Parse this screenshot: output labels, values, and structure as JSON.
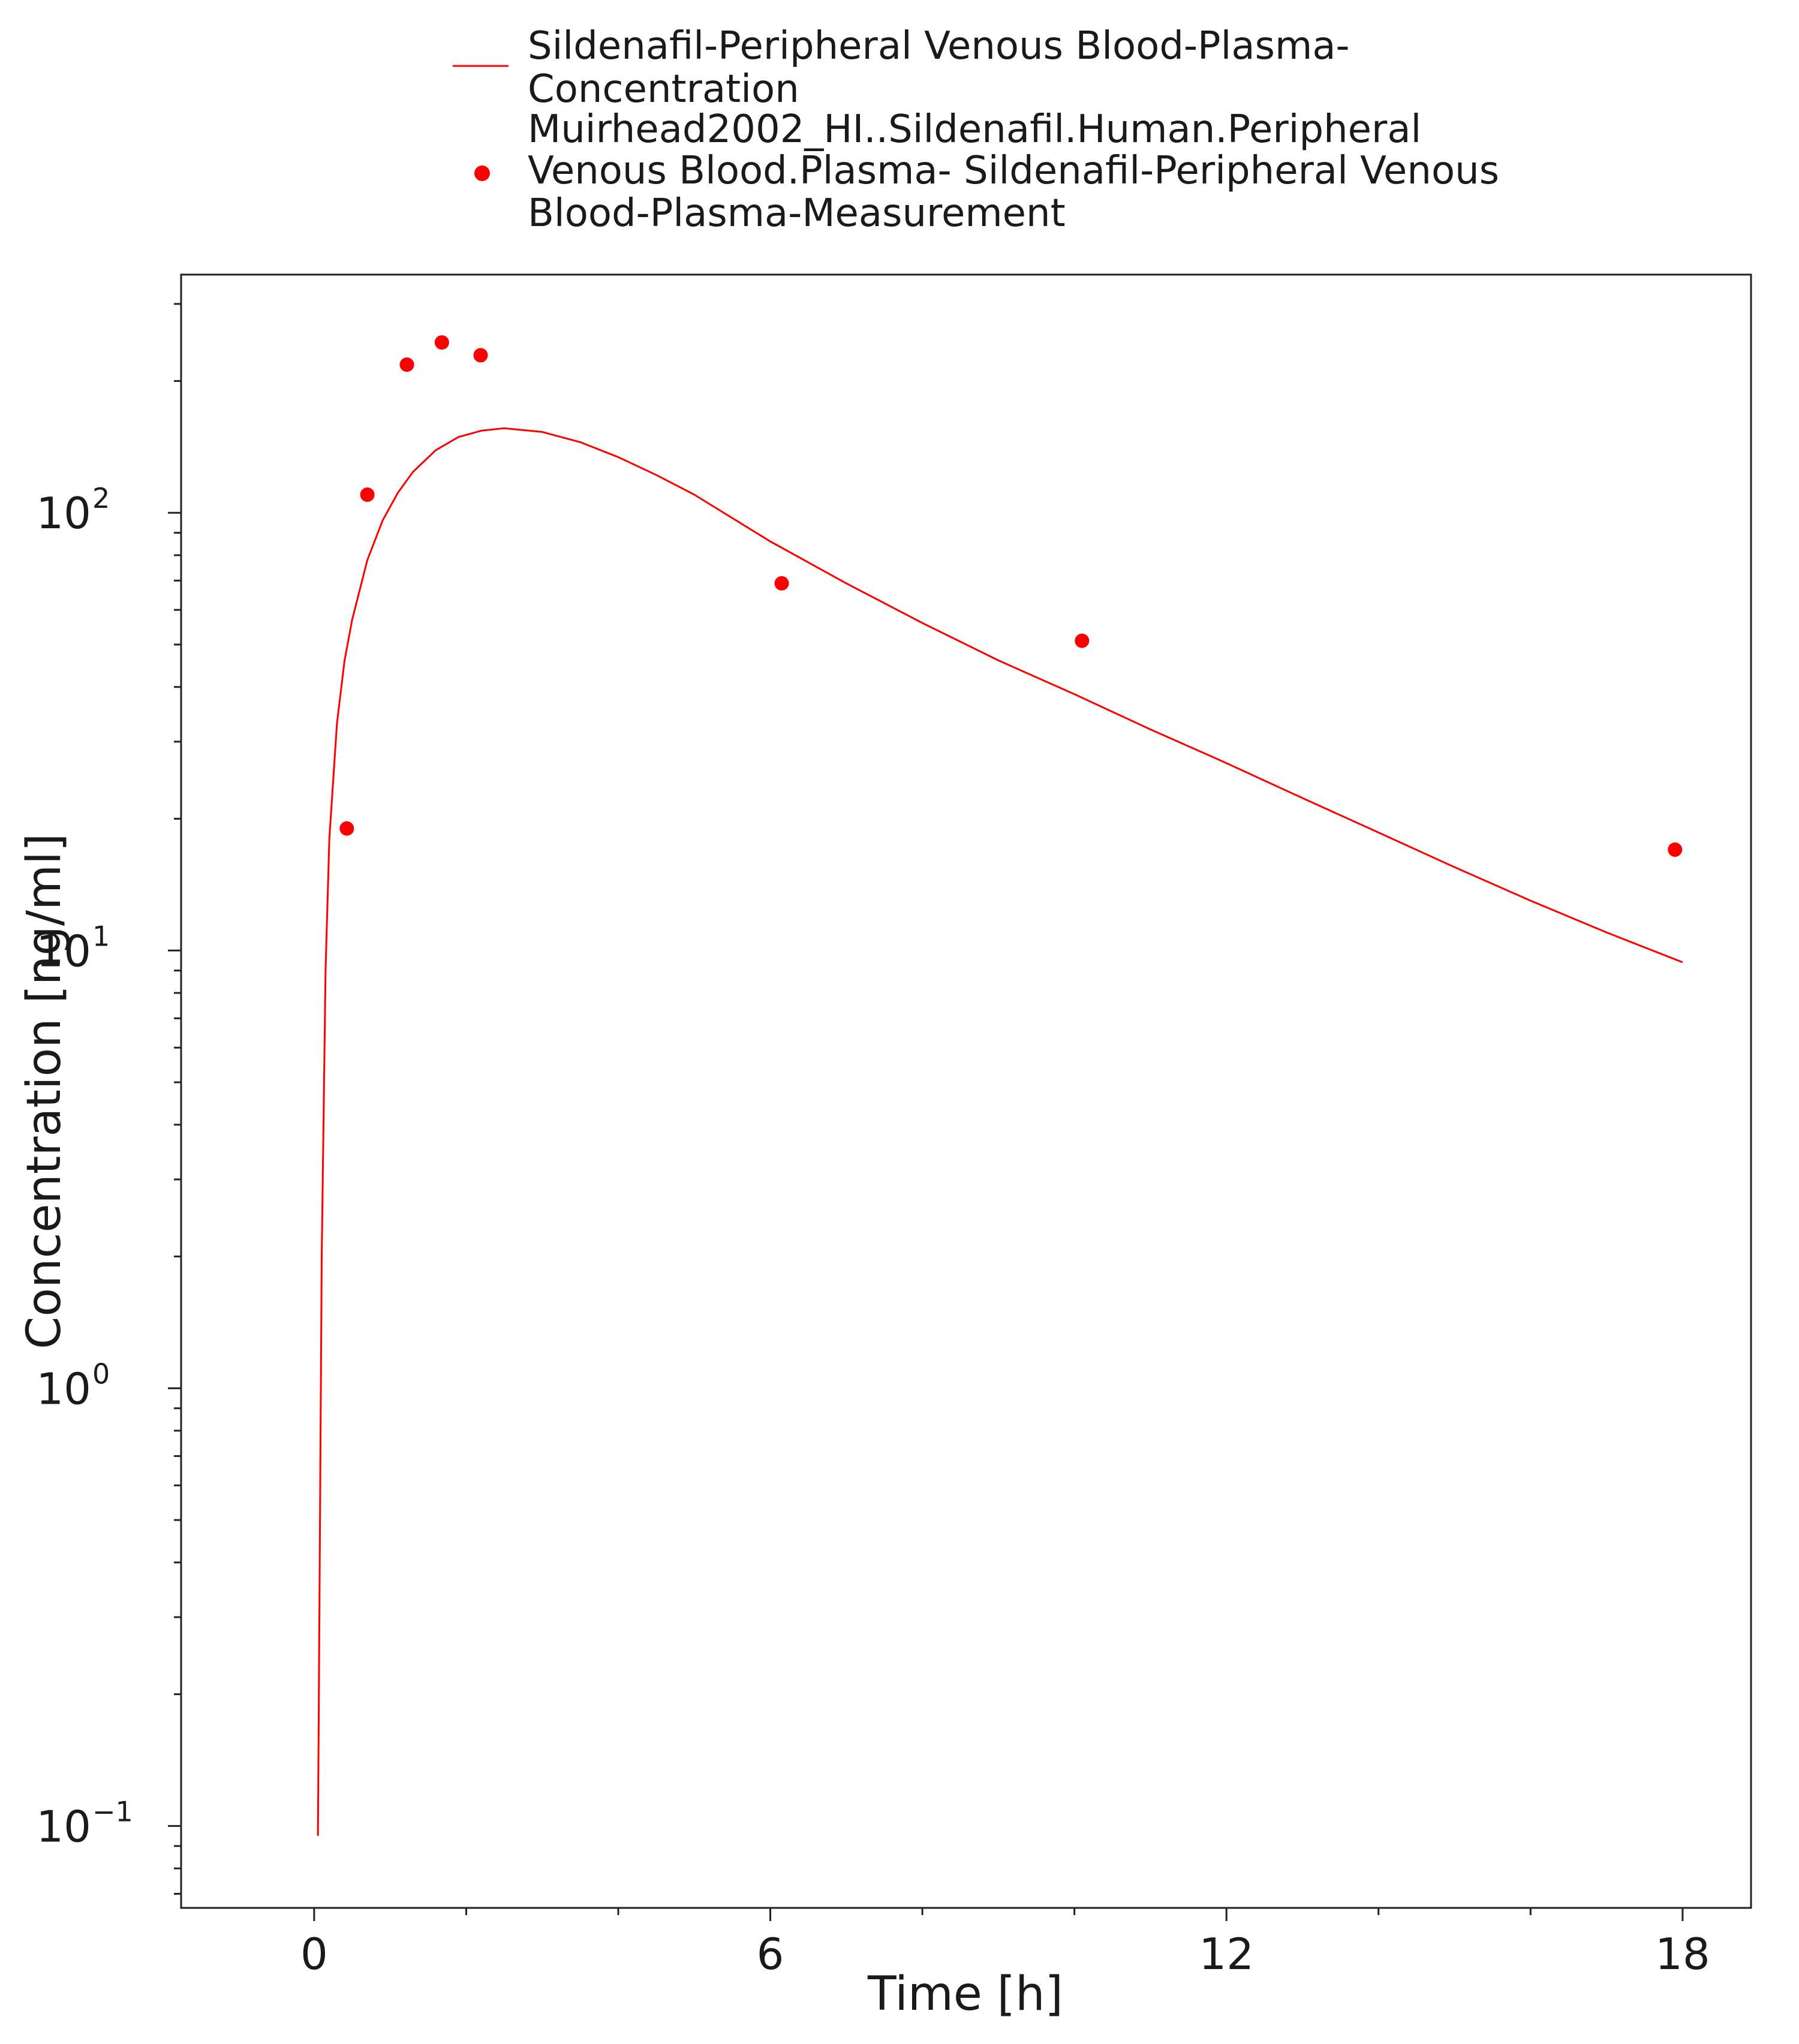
{
  "chart_data": {
    "type": "line",
    "xlabel": "Time [h]",
    "ylabel": "Concentration [ng/ml]",
    "y_scale": "log",
    "xlim": [
      -1.75,
      18.9
    ],
    "ylim": [
      0.065,
      350
    ],
    "x_ticks": [
      {
        "value": 0,
        "label": "0"
      },
      {
        "value": 6,
        "label": "6"
      },
      {
        "value": 12,
        "label": "12"
      },
      {
        "value": 18,
        "label": "18"
      }
    ],
    "y_ticks": [
      {
        "value": 0.1,
        "base": "10",
        "exp": "−1"
      },
      {
        "value": 1,
        "base": "10",
        "exp": "0"
      },
      {
        "value": 10,
        "base": "10",
        "exp": "1"
      },
      {
        "value": 100,
        "base": "10",
        "exp": "2"
      }
    ],
    "grid": false,
    "legend_position": "top",
    "series": [
      {
        "name": "Sildenafil-Peripheral Venous Blood-Plasma-Concentration",
        "legend_lines": [
          "Sildenafil-Peripheral Venous Blood-Plasma-",
          "Concentration"
        ],
        "kind": "line",
        "color": "#ff0000",
        "x": [
          0.05,
          0.1,
          0.15,
          0.2,
          0.3,
          0.4,
          0.5,
          0.7,
          0.9,
          1.1,
          1.3,
          1.6,
          1.9,
          2.2,
          2.5,
          3.0,
          3.5,
          4.0,
          4.5,
          5.0,
          6.0,
          7.0,
          8.0,
          9.0,
          10.0,
          11.0,
          12.0,
          13.0,
          14.0,
          15.0,
          16.0,
          17.0,
          18.0
        ],
        "y": [
          0.095,
          2.0,
          9.0,
          18.0,
          33.0,
          46.0,
          57.0,
          78.0,
          96.0,
          111.0,
          124.0,
          139.0,
          149.0,
          154.0,
          156.0,
          153.0,
          145.0,
          134.0,
          122.0,
          110.0,
          86.0,
          69.0,
          56.0,
          46.0,
          38.5,
          32.0,
          26.8,
          22.3,
          18.6,
          15.5,
          13.0,
          11.0,
          9.4
        ]
      },
      {
        "name": "Muirhead2002_HI..Sildenafil.Human.Peripheral Venous Blood.Plasma- Sildenafil-Peripheral Venous Blood-Plasma-Measurement",
        "legend_lines": [
          "Muirhead2002_HI..Sildenafil.Human.Peripheral",
          "Venous Blood.Plasma- Sildenafil-Peripheral Venous",
          "Blood-Plasma-Measurement"
        ],
        "kind": "scatter",
        "color": "#ff0000",
        "x": [
          0.43,
          0.7,
          1.22,
          1.68,
          2.19,
          6.15,
          10.1,
          17.9
        ],
        "y": [
          19,
          110,
          218,
          245,
          229,
          69,
          51,
          17
        ]
      }
    ]
  }
}
